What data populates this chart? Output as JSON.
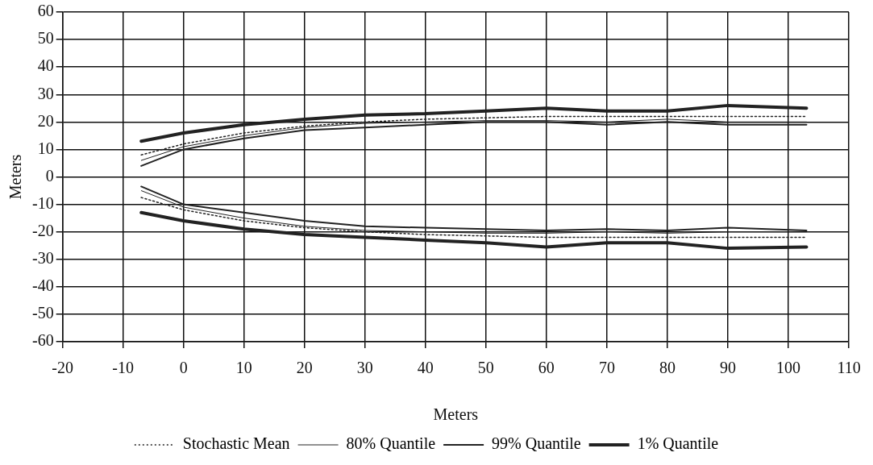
{
  "chart_data": {
    "type": "line",
    "xlabel": "Meters",
    "ylabel": "Meters",
    "x": [
      -7,
      0,
      10,
      20,
      30,
      40,
      50,
      60,
      70,
      80,
      90,
      103
    ],
    "xlim": [
      -20,
      110
    ],
    "xticks": [
      -20,
      -10,
      0,
      10,
      20,
      30,
      40,
      50,
      60,
      70,
      80,
      90,
      100,
      110
    ],
    "ylim": [
      -60,
      60
    ],
    "yticks": [
      -60,
      -50,
      -40,
      -30,
      -20,
      -10,
      0,
      10,
      20,
      30,
      40,
      50,
      60
    ],
    "grid": true,
    "legend": "bottom",
    "marker": "none",
    "series": [
      {
        "name": "Stochastic Mean",
        "color": "#222222",
        "line_style": "dotted",
        "values": [
          8,
          12,
          16,
          18.5,
          20,
          21,
          21.5,
          22,
          22,
          22,
          22,
          22
        ]
      },
      {
        "name": "80% Quantile",
        "color": "#222222",
        "line_style": "solid",
        "values": [
          6,
          11,
          15,
          18,
          19.5,
          20,
          20.5,
          20.5,
          20,
          21,
          20,
          20
        ]
      },
      {
        "name": "99% Quantile",
        "color": "#222222",
        "line_style": "solid",
        "values": [
          4,
          10,
          14,
          17,
          18,
          19,
          20,
          20,
          19,
          20,
          19,
          19
        ]
      },
      {
        "name": "1% Quantile",
        "color": "#222222",
        "line_style": "solid",
        "values": [
          13,
          16,
          19,
          21,
          22.5,
          23,
          24,
          25,
          24,
          24,
          26,
          25
        ]
      },
      {
        "color": "#222222",
        "line_style": "dotted",
        "values": [
          -7.5,
          -12,
          -16,
          -18.5,
          -20,
          -21,
          -21.5,
          -22,
          -22,
          -22,
          -22,
          -22
        ]
      },
      {
        "color": "#222222",
        "line_style": "solid",
        "values": [
          -5,
          -11,
          -15,
          -18,
          -19.5,
          -20,
          -20.5,
          -20.5,
          -20,
          -20.5,
          -20,
          -20
        ]
      },
      {
        "color": "#222222",
        "line_style": "solid",
        "values": [
          -3.5,
          -10,
          -13,
          -16,
          -18,
          -18.5,
          -19,
          -19.5,
          -19,
          -19.5,
          -18.5,
          -19.5
        ]
      },
      {
        "color": "#222222",
        "line_style": "solid",
        "values": [
          -13,
          -16,
          -19,
          -21,
          -22,
          -23,
          -24,
          -25.5,
          -24,
          -24,
          -26,
          -25.5
        ]
      }
    ]
  }
}
